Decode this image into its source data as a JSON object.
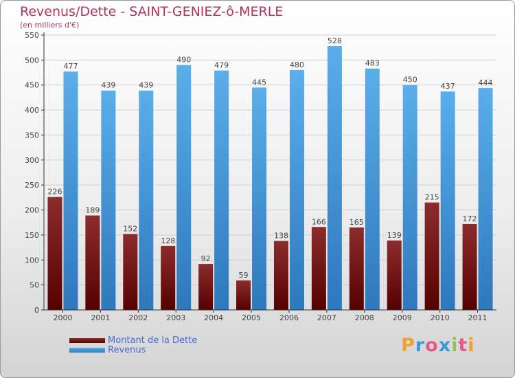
{
  "title": "Revenus/Dette - SAINT-GENIEZ-ô-MERLE",
  "subtitle": "(en milliers d'€)",
  "logo": {
    "letters": [
      "P",
      "r",
      "o",
      "x",
      "i",
      "t",
      "i"
    ],
    "colors": [
      "#f0a030",
      "#3a9ad9",
      "#e65a8c",
      "#3a9ad9",
      "#8cc84b",
      "#e65a8c",
      "#f0a030"
    ]
  },
  "colors": {
    "dette": [
      "#8c2c2c",
      "#560000"
    ],
    "revenus": [
      "#5aaeea",
      "#2e78bc"
    ],
    "grid": "#cfcfcf",
    "axis": "#333333"
  },
  "chart_data": {
    "type": "bar",
    "title": "Revenus/Dette - SAINT-GENIEZ-ô-MERLE",
    "subtitle": "(en milliers d'€)",
    "categories": [
      "2000",
      "2001",
      "2002",
      "2003",
      "2004",
      "2005",
      "2006",
      "2007",
      "2008",
      "2009",
      "2010",
      "2011"
    ],
    "series": [
      {
        "name": "Montant de la Dette",
        "values": [
          226,
          189,
          152,
          128,
          92,
          59,
          138,
          166,
          165,
          139,
          215,
          172
        ]
      },
      {
        "name": "Revenus",
        "values": [
          477,
          439,
          439,
          490,
          479,
          445,
          480,
          528,
          483,
          450,
          437,
          444
        ]
      }
    ],
    "ylim": [
      0,
      550
    ],
    "yticks": [
      0,
      50,
      100,
      150,
      200,
      250,
      300,
      350,
      400,
      450,
      500,
      550
    ],
    "grid": true,
    "legend": "bottom-left"
  }
}
